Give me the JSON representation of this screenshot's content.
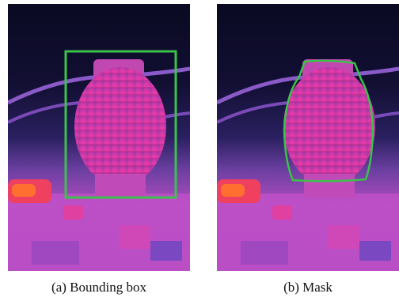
{
  "figure": {
    "panels": [
      {
        "caption": "(a) Bounding box"
      },
      {
        "caption": "(b) Mask"
      }
    ]
  }
}
